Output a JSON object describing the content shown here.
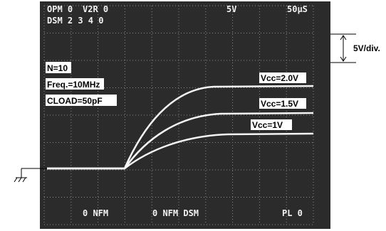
{
  "screen": {
    "top_line": [
      "OPM 0",
      "V2R 0",
      "5V",
      "50μS"
    ],
    "second_line": "DSM 2 3 4 0",
    "bottom_line": [
      "0 NFM",
      "0 NFM DSM",
      "PL 0"
    ]
  },
  "conditions": [
    "N=10",
    "Freq.=10MHz",
    "CLOAD=50pF"
  ],
  "traces": [
    {
      "label": "Vcc=2.0V"
    },
    {
      "label": "Vcc=1.5V"
    },
    {
      "label": "Vcc=1V"
    }
  ],
  "scale": "5V/div."
}
